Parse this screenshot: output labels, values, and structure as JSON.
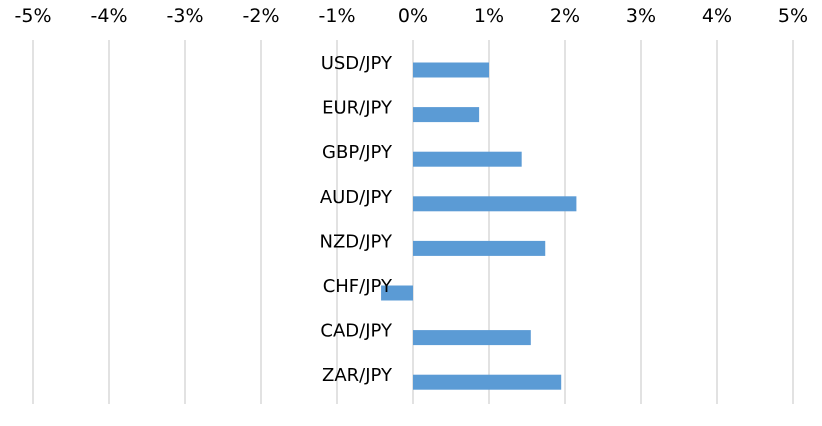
{
  "chart_data": {
    "type": "bar",
    "orientation": "horizontal",
    "categories": [
      "USD/JPY",
      "EUR/JPY",
      "GBP/JPY",
      "AUD/JPY",
      "NZD/JPY",
      "CHF/JPY",
      "CAD/JPY",
      "ZAR/JPY"
    ],
    "values": [
      1.0,
      0.87,
      1.43,
      2.15,
      1.74,
      -0.42,
      1.55,
      1.95
    ],
    "xlim": [
      -5,
      5
    ],
    "x_ticks": [
      -5,
      -4,
      -3,
      -2,
      -1,
      0,
      1,
      2,
      3,
      4,
      5
    ],
    "x_tick_labels": [
      "-5%",
      "-4%",
      "-3%",
      "-2%",
      "-1%",
      "0%",
      "1%",
      "2%",
      "3%",
      "4%",
      "5%"
    ],
    "x_axis_position": "top",
    "title": "",
    "xlabel": "",
    "ylabel": "",
    "grid": true,
    "legend": "none",
    "colors": {
      "bar": "#5b9bd5",
      "grid": "#d9d9d9",
      "text": "#000000"
    }
  }
}
